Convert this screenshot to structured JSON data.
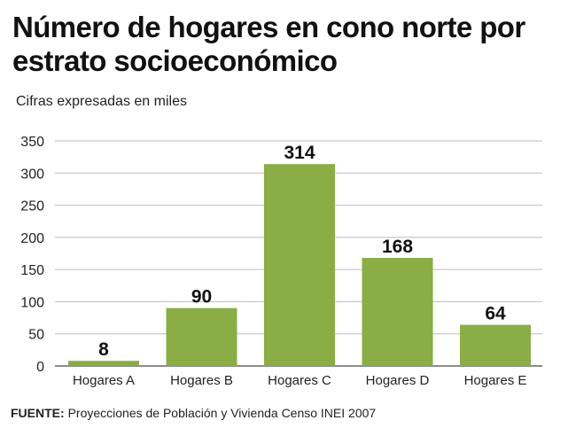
{
  "header": {
    "title": "Número de hogares en cono norte por estrato socioeconómico",
    "subtitle": "Cifras expresadas en miles"
  },
  "footer": {
    "source_label": "FUENTE:",
    "source_text": "Proyecciones de Población y Vivienda Censo INEI 2007"
  },
  "colors": {
    "bar": "#8aad45",
    "grid": "#bbbbbb",
    "axis": "#666666"
  },
  "chart_data": {
    "type": "bar",
    "title": "Número de hogares en cono norte por estrato socioeconómico",
    "subtitle": "Cifras expresadas en miles",
    "categories": [
      "Hogares A",
      "Hogares B",
      "Hogares C",
      "Hogares D",
      "Hogares E"
    ],
    "values": [
      8,
      90,
      314,
      168,
      64
    ],
    "ylim": [
      0,
      350
    ],
    "yticks": [
      0,
      50,
      100,
      150,
      200,
      250,
      300,
      350
    ],
    "grid": true,
    "legend": "none"
  }
}
